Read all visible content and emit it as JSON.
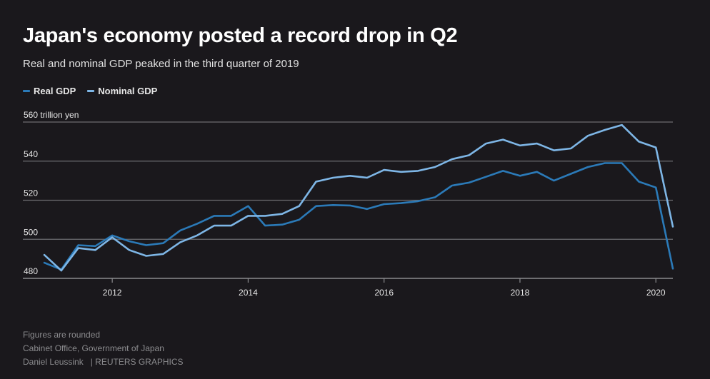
{
  "header": {
    "title": "Japan's economy posted a record drop in Q2",
    "subtitle": "Real and nominal GDP peaked in the third quarter of 2019"
  },
  "footer": {
    "note": "Figures are rounded",
    "source": "Cabinet Office, Government of Japan",
    "author": "Daniel Leussink",
    "credit": "| REUTERS GRAPHICS"
  },
  "chart_data": {
    "type": "line",
    "title": "Japan's economy posted a record drop in Q2",
    "subtitle": "Real and nominal GDP peaked in the third quarter of 2019",
    "unit_label": "560 trillion yen",
    "x": [
      2011.0,
      2011.25,
      2011.5,
      2011.75,
      2012.0,
      2012.25,
      2012.5,
      2012.75,
      2013.0,
      2013.25,
      2013.5,
      2013.75,
      2014.0,
      2014.25,
      2014.5,
      2014.75,
      2015.0,
      2015.25,
      2015.5,
      2015.75,
      2016.0,
      2016.25,
      2016.5,
      2016.75,
      2017.0,
      2017.25,
      2017.5,
      2017.75,
      2018.0,
      2018.25,
      2018.5,
      2018.75,
      2019.0,
      2019.25,
      2019.5,
      2019.75,
      2020.0,
      2020.25
    ],
    "series": [
      {
        "name": "Real GDP",
        "color": "#2b7ab8",
        "values": [
          488,
          484.5,
          497,
          496.5,
          502,
          499,
          497,
          498,
          504.5,
          508,
          512,
          512,
          517,
          507,
          507.5,
          510,
          517,
          517.5,
          517.3,
          515.5,
          518,
          518.5,
          519.5,
          521.5,
          527.5,
          529,
          532,
          535,
          532.5,
          534.5,
          530,
          533.5,
          537,
          539,
          539,
          529.5,
          526.5,
          485
        ]
      },
      {
        "name": "Nominal GDP",
        "color": "#7eb6e6",
        "values": [
          492,
          484,
          495.5,
          494.5,
          501,
          494.5,
          491.5,
          492.5,
          498.5,
          502,
          507,
          507,
          512,
          512,
          513,
          517,
          529.5,
          531.5,
          532.5,
          531.5,
          535.5,
          534.5,
          535,
          537,
          541,
          543,
          549,
          551,
          548,
          549,
          545.5,
          546.5,
          553,
          556,
          558.5,
          550,
          547,
          506.5
        ]
      }
    ],
    "x_ticks": [
      2012,
      2014,
      2016,
      2018,
      2020
    ],
    "y_ticks": [
      480,
      500,
      520,
      540,
      560
    ],
    "xlim": [
      2011.0,
      2020.25
    ],
    "ylim": [
      480,
      560
    ],
    "grid": "horizontal",
    "legend": "top-left"
  }
}
